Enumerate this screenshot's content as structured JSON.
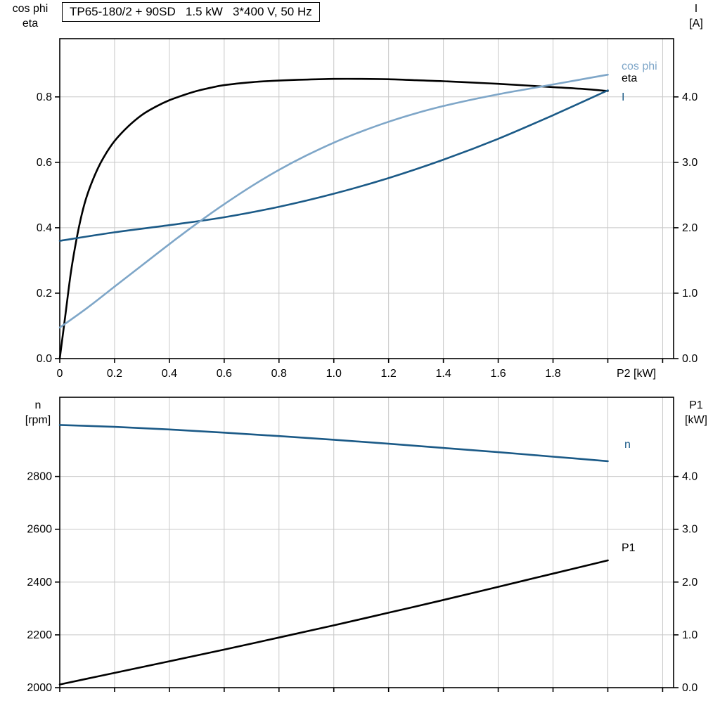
{
  "colors": {
    "grid": "#c8c8c8",
    "axis": "#000000",
    "background": "#ffffff"
  },
  "chart_data": [
    {
      "type": "line",
      "title": "TP65-180/2 + 90SD   1.5 kW   3*400 V, 50 Hz",
      "x_axis": {
        "label": "P2 [kW]",
        "min": 0,
        "max": 2.24,
        "grid_step": 0.2,
        "ticks": [
          0,
          0.2,
          0.4,
          0.6,
          0.8,
          1.0,
          1.2,
          1.4,
          1.6,
          1.8
        ],
        "tick_labels": [
          "0",
          "0.2",
          "0.4",
          "0.6",
          "0.8",
          "1.0",
          "1.2",
          "1.4",
          "1.6",
          "1.8"
        ]
      },
      "left_axis": {
        "label_lines": [
          "cos phi",
          "eta"
        ],
        "min": 0,
        "max": 0.978,
        "ticks": [
          0,
          0.2,
          0.4,
          0.6,
          0.8
        ],
        "tick_labels": [
          "0.0",
          "0.2",
          "0.4",
          "0.6",
          "0.8"
        ]
      },
      "right_axis": {
        "label_lines": [
          "I",
          "[A]"
        ],
        "min": 0,
        "max": 4.89,
        "ticks": [
          0,
          1,
          2,
          3,
          4
        ],
        "tick_labels": [
          "0.0",
          "1.0",
          "2.0",
          "3.0",
          "4.0"
        ]
      },
      "series": [
        {
          "name": "eta",
          "axis": "left",
          "color": "#000000",
          "points": [
            [
              0,
              0
            ],
            [
              0.02,
              0.13
            ],
            [
              0.04,
              0.26
            ],
            [
              0.06,
              0.36
            ],
            [
              0.08,
              0.44
            ],
            [
              0.1,
              0.5
            ],
            [
              0.13,
              0.565
            ],
            [
              0.16,
              0.615
            ],
            [
              0.2,
              0.665
            ],
            [
              0.25,
              0.71
            ],
            [
              0.3,
              0.745
            ],
            [
              0.35,
              0.77
            ],
            [
              0.4,
              0.79
            ],
            [
              0.45,
              0.805
            ],
            [
              0.5,
              0.818
            ],
            [
              0.55,
              0.828
            ],
            [
              0.6,
              0.836
            ],
            [
              0.7,
              0.845
            ],
            [
              0.8,
              0.85
            ],
            [
              0.9,
              0.853
            ],
            [
              1,
              0.855
            ],
            [
              1.1,
              0.855
            ],
            [
              1.2,
              0.854
            ],
            [
              1.3,
              0.851
            ],
            [
              1.4,
              0.848
            ],
            [
              1.5,
              0.844
            ],
            [
              1.6,
              0.84
            ],
            [
              1.7,
              0.835
            ],
            [
              1.8,
              0.83
            ],
            [
              1.9,
              0.825
            ],
            [
              2,
              0.818
            ]
          ]
        },
        {
          "name": "I",
          "axis": "right",
          "color": "#1b5a87",
          "points": [
            [
              0,
              1.8
            ],
            [
              0.2,
              1.93
            ],
            [
              0.4,
              2.04
            ],
            [
              0.6,
              2.16
            ],
            [
              0.8,
              2.32
            ],
            [
              1,
              2.52
            ],
            [
              1.2,
              2.76
            ],
            [
              1.4,
              3.04
            ],
            [
              1.6,
              3.36
            ],
            [
              1.8,
              3.72
            ],
            [
              2,
              4.1
            ]
          ]
        },
        {
          "name": "cos phi",
          "axis": "left",
          "color": "#7ea6c8",
          "points": [
            [
              0,
              0.095
            ],
            [
              0.1,
              0.155
            ],
            [
              0.2,
              0.22
            ],
            [
              0.3,
              0.285
            ],
            [
              0.4,
              0.35
            ],
            [
              0.5,
              0.413
            ],
            [
              0.6,
              0.472
            ],
            [
              0.7,
              0.527
            ],
            [
              0.8,
              0.577
            ],
            [
              0.9,
              0.621
            ],
            [
              1,
              0.66
            ],
            [
              1.1,
              0.694
            ],
            [
              1.2,
              0.724
            ],
            [
              1.3,
              0.75
            ],
            [
              1.4,
              0.772
            ],
            [
              1.5,
              0.791
            ],
            [
              1.6,
              0.808
            ],
            [
              1.7,
              0.823
            ],
            [
              1.8,
              0.838
            ],
            [
              1.9,
              0.853
            ],
            [
              2,
              0.868
            ]
          ]
        }
      ]
    },
    {
      "type": "line",
      "title": "",
      "x_axis": {
        "label": "",
        "min": 0,
        "max": 2.24,
        "grid_step": 0.2,
        "ticks": [],
        "tick_labels": []
      },
      "left_axis": {
        "label_lines": [
          "n",
          "[rpm]"
        ],
        "min": 2000,
        "max": 3100,
        "ticks": [
          2000,
          2200,
          2400,
          2600,
          2800
        ],
        "tick_labels": [
          "2000",
          "2200",
          "2400",
          "2600",
          "2800"
        ]
      },
      "right_axis": {
        "label_lines": [
          "P1",
          "[kW]"
        ],
        "min": 0,
        "max": 5.5,
        "ticks": [
          0,
          1,
          2,
          3,
          4
        ],
        "tick_labels": [
          "0.0",
          "1.0",
          "2.0",
          "3.0",
          "4.0"
        ]
      },
      "series": [
        {
          "name": "P1",
          "axis": "right",
          "color": "#000000",
          "points": [
            [
              0,
              0.06
            ],
            [
              0.2,
              0.28
            ],
            [
              0.4,
              0.5
            ],
            [
              0.6,
              0.72
            ],
            [
              0.8,
              0.95
            ],
            [
              1,
              1.18
            ],
            [
              1.2,
              1.42
            ],
            [
              1.4,
              1.66
            ],
            [
              1.6,
              1.91
            ],
            [
              1.8,
              2.16
            ],
            [
              2,
              2.41
            ]
          ]
        },
        {
          "name": "n",
          "axis": "left",
          "color": "#1b5a87",
          "points": [
            [
              0,
              2995
            ],
            [
              0.2,
              2988
            ],
            [
              0.4,
              2978
            ],
            [
              0.6,
              2966
            ],
            [
              0.8,
              2953
            ],
            [
              1,
              2939
            ],
            [
              1.2,
              2924
            ],
            [
              1.4,
              2908
            ],
            [
              1.6,
              2892
            ],
            [
              1.8,
              2875
            ],
            [
              2,
              2858
            ]
          ]
        }
      ]
    }
  ]
}
